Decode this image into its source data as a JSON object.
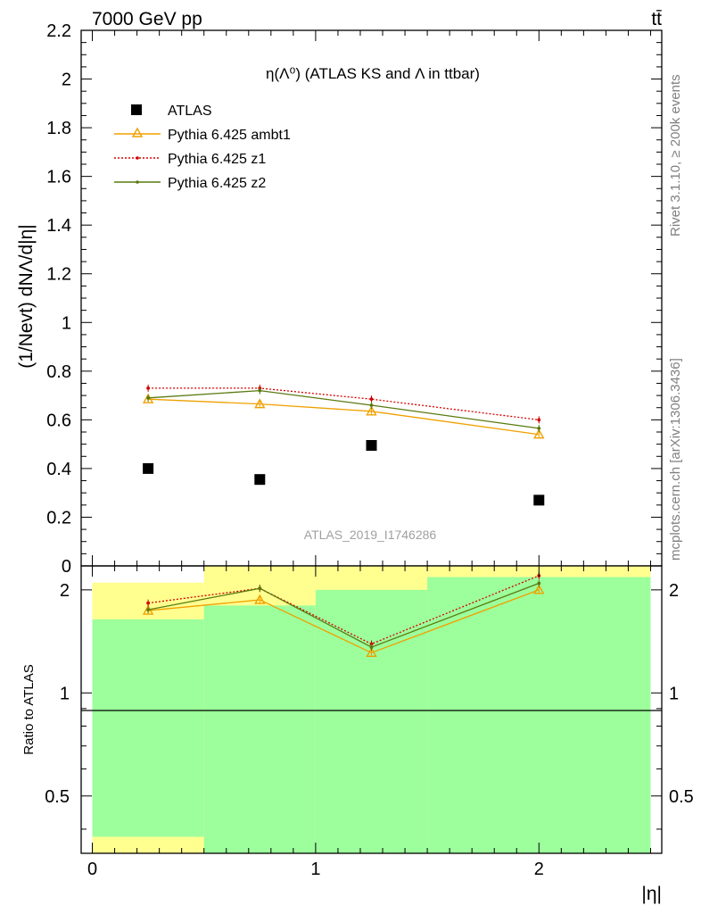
{
  "header": {
    "energy_label": "7000 GeV pp",
    "process_label": "tt̄"
  },
  "side_text": {
    "rivet": "Rivet 3.1.10, ≥ 200k events",
    "mcplots": "mcplots.cern.ch [arXiv:1306.3436]"
  },
  "watermark": "ATLAS_2019_I1746286",
  "colors": {
    "atlas": "#000000",
    "ambt1": "#f0a000",
    "z1": "#d40000",
    "z2": "#5a7a10",
    "band_green": "#9cff9c",
    "band_yellow": "#ffff90"
  },
  "chart_data": [
    {
      "type": "scatter",
      "title": "η(Λ⁰) (ATLAS KS and Λ in ttbar)",
      "ylabel": "(1/Nevt) dNΛ/d|η|",
      "xlabel": "|η|",
      "xlim": [
        -0.05,
        2.55
      ],
      "ylim": [
        0,
        2.2
      ],
      "y_ticks": [
        "0",
        "0.2",
        "0.4",
        "0.6",
        "0.8",
        "1",
        "1.2",
        "1.4",
        "1.6",
        "1.8",
        "2",
        "2.2"
      ],
      "legend_position": "top-left",
      "x": [
        0.25,
        0.75,
        1.25,
        2.0
      ],
      "series": [
        {
          "name": "ATLAS",
          "style": "square-marker",
          "values": [
            0.4,
            0.355,
            0.495,
            0.27
          ]
        },
        {
          "name": "Pythia 6.425 ambt1",
          "style": "solid-triangle",
          "values": [
            0.685,
            0.665,
            0.635,
            0.54
          ]
        },
        {
          "name": "Pythia 6.425 z1",
          "style": "dotted",
          "values": [
            0.73,
            0.73,
            0.685,
            0.6
          ]
        },
        {
          "name": "Pythia 6.425 z2",
          "style": "solid-dot",
          "values": [
            0.69,
            0.72,
            0.66,
            0.565
          ]
        }
      ]
    },
    {
      "type": "line",
      "ylabel": "Ratio to ATLAS",
      "xlabel": "|η|",
      "x_ticks": [
        "0",
        "1",
        "2"
      ],
      "y_ticks": [
        "0.5",
        "1",
        "2"
      ],
      "log_y": true,
      "ylim": [
        0.34,
        2.35
      ],
      "x": [
        0.25,
        0.75,
        1.25,
        2.0
      ],
      "bins": [
        [
          0,
          0.5
        ],
        [
          0.5,
          1.0
        ],
        [
          1.0,
          1.5
        ],
        [
          1.5,
          2.5
        ]
      ],
      "band_green": [
        [
          0.38,
          1.64
        ],
        [
          0.34,
          1.8
        ],
        [
          0.34,
          2.0
        ],
        [
          0.34,
          2.18
        ]
      ],
      "band_yellow": [
        [
          0.34,
          2.1
        ],
        [
          0.34,
          2.35
        ],
        [
          0.34,
          2.35
        ],
        [
          0.34,
          2.35
        ]
      ],
      "reference": 1,
      "series": [
        {
          "name": "Pythia 6.425 ambt1",
          "values": [
            1.74,
            1.87,
            1.31,
            2.0
          ]
        },
        {
          "name": "Pythia 6.425 z1",
          "values": [
            1.83,
            2.02,
            1.39,
            2.2
          ]
        },
        {
          "name": "Pythia 6.425 z2",
          "values": [
            1.75,
            2.02,
            1.36,
            2.09
          ]
        }
      ]
    }
  ]
}
